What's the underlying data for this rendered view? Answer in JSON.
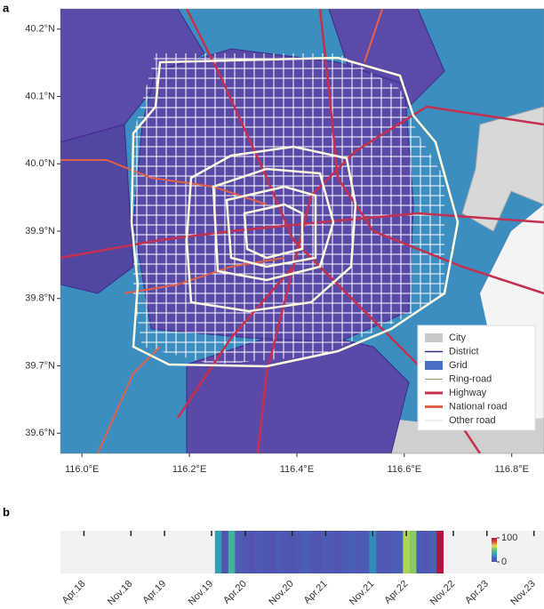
{
  "panels": {
    "a": "a",
    "b": "b"
  },
  "map": {
    "xlim": [
      115.96,
      116.86
    ],
    "ylim": [
      39.57,
      40.23
    ],
    "xticks": [
      {
        "value": 116.0,
        "label": "116.0°E"
      },
      {
        "value": 116.2,
        "label": "116.2°E"
      },
      {
        "value": 116.4,
        "label": "116.4°E"
      },
      {
        "value": 116.6,
        "label": "116.6°E"
      },
      {
        "value": 116.8,
        "label": "116.8°E"
      }
    ],
    "yticks": [
      {
        "value": 39.6,
        "label": "39.6°N"
      },
      {
        "value": 39.7,
        "label": "39.7°N"
      },
      {
        "value": 39.8,
        "label": "39.8°N"
      },
      {
        "value": 39.9,
        "label": "39.9°N"
      },
      {
        "value": 40.0,
        "label": "40.0°N"
      },
      {
        "value": 40.1,
        "label": "40.1°N"
      },
      {
        "value": 40.2,
        "label": "40.2°N"
      }
    ],
    "legend": [
      {
        "name": "City",
        "color": "#c8c8c8",
        "kind": "patch"
      },
      {
        "name": "District",
        "color": "#3b2a8a",
        "kind": "line"
      },
      {
        "name": "Grid",
        "color": "#4a6fc4",
        "kind": "patch"
      },
      {
        "name": "Ring-road",
        "color": "#9a9a6a",
        "kind": "thin"
      },
      {
        "name": "Highway",
        "color": "#c4304e",
        "kind": "thick"
      },
      {
        "name": "National road",
        "color": "#e0604a",
        "kind": "thick"
      },
      {
        "name": "Other road",
        "color": "#dddddd",
        "kind": "thin"
      }
    ]
  },
  "chart_data": {
    "type": "heatmap-strip",
    "categories": [
      null,
      null,
      null,
      "Apr.18",
      null,
      null,
      null,
      null,
      null,
      null,
      "Nov.18",
      null,
      null,
      null,
      null,
      "Apr.19",
      null,
      null,
      null,
      null,
      null,
      null,
      "Nov.19",
      null,
      null,
      null,
      null,
      "Apr.20",
      null,
      null,
      null,
      null,
      null,
      null,
      "Nov.20",
      null,
      null,
      null,
      null,
      "Apr.21",
      null,
      null,
      null,
      null,
      null,
      null,
      "Nov.21",
      null,
      null,
      null,
      null,
      "Apr.22",
      null,
      null,
      null,
      null,
      null,
      null,
      "Nov.22",
      null,
      null,
      null,
      null,
      "Apr.23",
      null,
      null,
      null,
      null,
      null,
      null,
      "Nov.23",
      null
    ],
    "values": [
      null,
      null,
      null,
      null,
      null,
      null,
      null,
      null,
      null,
      null,
      null,
      null,
      null,
      null,
      null,
      null,
      null,
      null,
      null,
      null,
      null,
      null,
      null,
      30,
      5,
      40,
      8,
      6,
      5,
      7,
      6,
      5,
      8,
      6,
      5,
      7,
      9,
      6,
      5,
      8,
      6,
      5,
      7,
      10,
      6,
      8,
      25,
      7,
      6,
      8,
      9,
      60,
      55,
      8,
      6,
      10,
      100,
      null,
      null,
      null,
      null,
      null,
      null,
      null,
      null,
      null,
      null,
      null,
      null,
      null,
      null,
      null
    ],
    "clim": [
      0,
      100
    ],
    "cticks": [
      0,
      100
    ],
    "colormap": [
      "#5b4aa8",
      "#3b6fc0",
      "#2fa9b5",
      "#5cc36b",
      "#e8e04a",
      "#e04a3a",
      "#b8103a"
    ],
    "missing_color": "#f2f2f2"
  }
}
